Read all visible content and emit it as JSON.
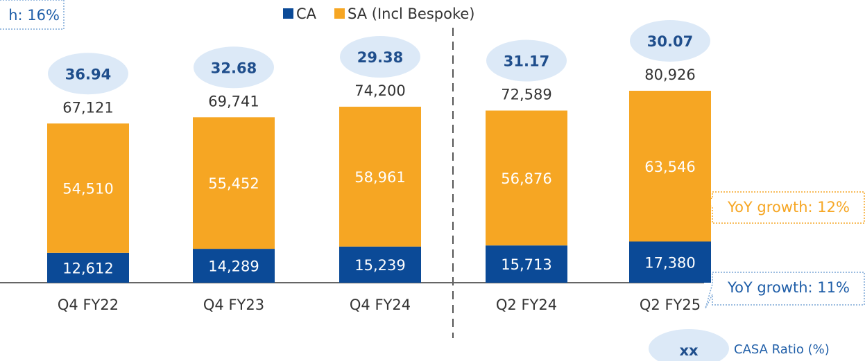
{
  "chart_data": {
    "type": "bar",
    "stacked": true,
    "categories": [
      "Q4 FY22",
      "Q4 FY23",
      "Q4 FY24",
      "Q2 FY24",
      "Q2 FY25"
    ],
    "series": [
      {
        "name": "CA",
        "color": "#0b4a97",
        "values": [
          12612,
          14289,
          15239,
          15713,
          17380
        ],
        "value_labels": [
          "12,612",
          "14,289",
          "15,239",
          "15,713",
          "17,380"
        ]
      },
      {
        "name": "SA (Incl Bespoke)",
        "color": "#f6a623",
        "values": [
          54510,
          55452,
          58961,
          56876,
          63546
        ],
        "value_labels": [
          "54,510",
          "55,452",
          "58,961",
          "56,876",
          "63,546"
        ]
      }
    ],
    "totals": [
      67121,
      69741,
      74200,
      72589,
      80926
    ],
    "total_labels": [
      "67,121",
      "69,741",
      "74,200",
      "72,589",
      "80,926"
    ],
    "casa_ratio": [
      36.94,
      32.68,
      29.38,
      31.17,
      30.07
    ],
    "annotations": [
      "h: 16%",
      "YoY growth: 12%",
      "YoY growth: 11%"
    ],
    "ratio_legend": {
      "marker": "xx",
      "label": "CASA Ratio (%)"
    }
  }
}
